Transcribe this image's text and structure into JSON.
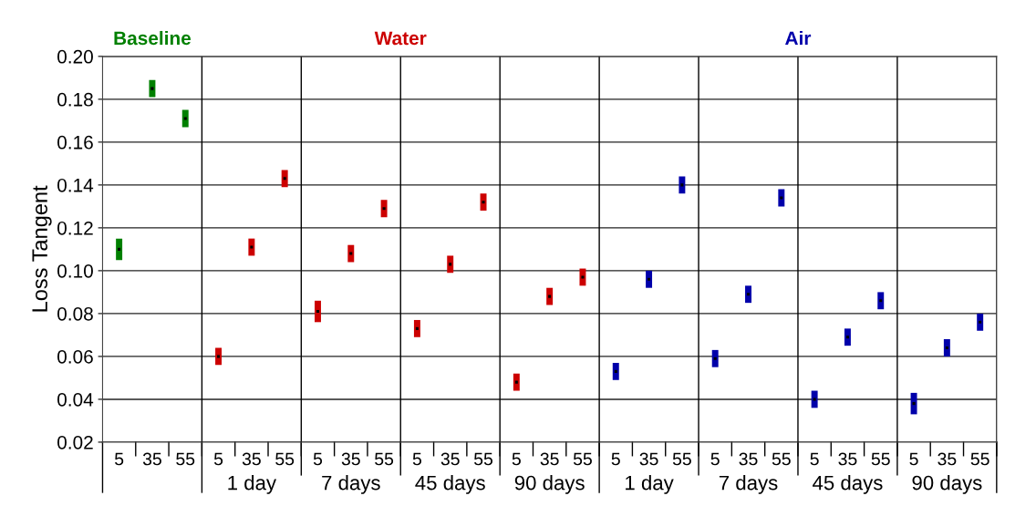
{
  "chart_data": {
    "type": "scatter",
    "ylabel": "Loss Tangent",
    "categories": [
      "5",
      "35",
      "55",
      "5",
      "35",
      "55",
      "5",
      "35",
      "55",
      "5",
      "35",
      "55",
      "5",
      "35",
      "55",
      "5",
      "35",
      "55",
      "5",
      "35",
      "55",
      "5",
      "35",
      "55",
      "5",
      "35",
      "55"
    ],
    "series": [
      {
        "name": "Baseline",
        "color": "#008000",
        "values": [
          0.11,
          0.185,
          0.171,
          null,
          null,
          null,
          null,
          null,
          null,
          null,
          null,
          null,
          null,
          null,
          null,
          null,
          null,
          null,
          null,
          null,
          null,
          null,
          null,
          null,
          null,
          null,
          null
        ],
        "errors": [
          0.005,
          0.004,
          0.004,
          null,
          null,
          null,
          null,
          null,
          null,
          null,
          null,
          null,
          null,
          null,
          null,
          null,
          null,
          null,
          null,
          null,
          null,
          null,
          null,
          null,
          null,
          null,
          null
        ]
      },
      {
        "name": "Water",
        "color": "#cc0000",
        "values": [
          null,
          null,
          null,
          0.06,
          0.111,
          0.143,
          0.081,
          0.108,
          0.129,
          0.073,
          0.103,
          0.132,
          0.048,
          0.088,
          0.097,
          null,
          null,
          null,
          null,
          null,
          null,
          null,
          null,
          null,
          null,
          null,
          null
        ],
        "errors": [
          null,
          null,
          null,
          0.004,
          0.004,
          0.004,
          0.005,
          0.004,
          0.004,
          0.004,
          0.004,
          0.004,
          0.004,
          0.004,
          0.004,
          null,
          null,
          null,
          null,
          null,
          null,
          null,
          null,
          null,
          null,
          null,
          null
        ]
      },
      {
        "name": "Air",
        "color": "#0000aa",
        "values": [
          null,
          null,
          null,
          null,
          null,
          null,
          null,
          null,
          null,
          null,
          null,
          null,
          null,
          null,
          null,
          0.053,
          0.096,
          0.14,
          0.059,
          0.089,
          0.134,
          0.04,
          0.069,
          0.086,
          0.038,
          0.064,
          0.076
        ],
        "errors": [
          null,
          null,
          null,
          null,
          null,
          null,
          null,
          null,
          null,
          null,
          null,
          null,
          null,
          null,
          null,
          0.004,
          0.004,
          0.004,
          0.004,
          0.004,
          0.004,
          0.004,
          0.004,
          0.004,
          0.005,
          0.004,
          0.004
        ]
      }
    ],
    "annotations": [
      "1 day",
      "7 days",
      "45 days",
      "90 days",
      "1 day",
      "7 days",
      "45 days",
      "90 days"
    ],
    "ylim": [
      0.02,
      0.2
    ],
    "yticks": [
      {
        "value": 0.02,
        "label": "0.02"
      },
      {
        "value": 0.04,
        "label": "0.04"
      },
      {
        "value": 0.06,
        "label": "0.06"
      },
      {
        "value": 0.08,
        "label": "0.08"
      },
      {
        "value": 0.1,
        "label": "0.10"
      },
      {
        "value": 0.12,
        "label": "0.12"
      },
      {
        "value": 0.14,
        "label": "0.14"
      },
      {
        "value": 0.16,
        "label": "0.16"
      },
      {
        "value": 0.18,
        "label": "0.18"
      },
      {
        "value": 0.2,
        "label": "0.20"
      }
    ],
    "grid": "y",
    "legend": false,
    "marker": "square"
  }
}
